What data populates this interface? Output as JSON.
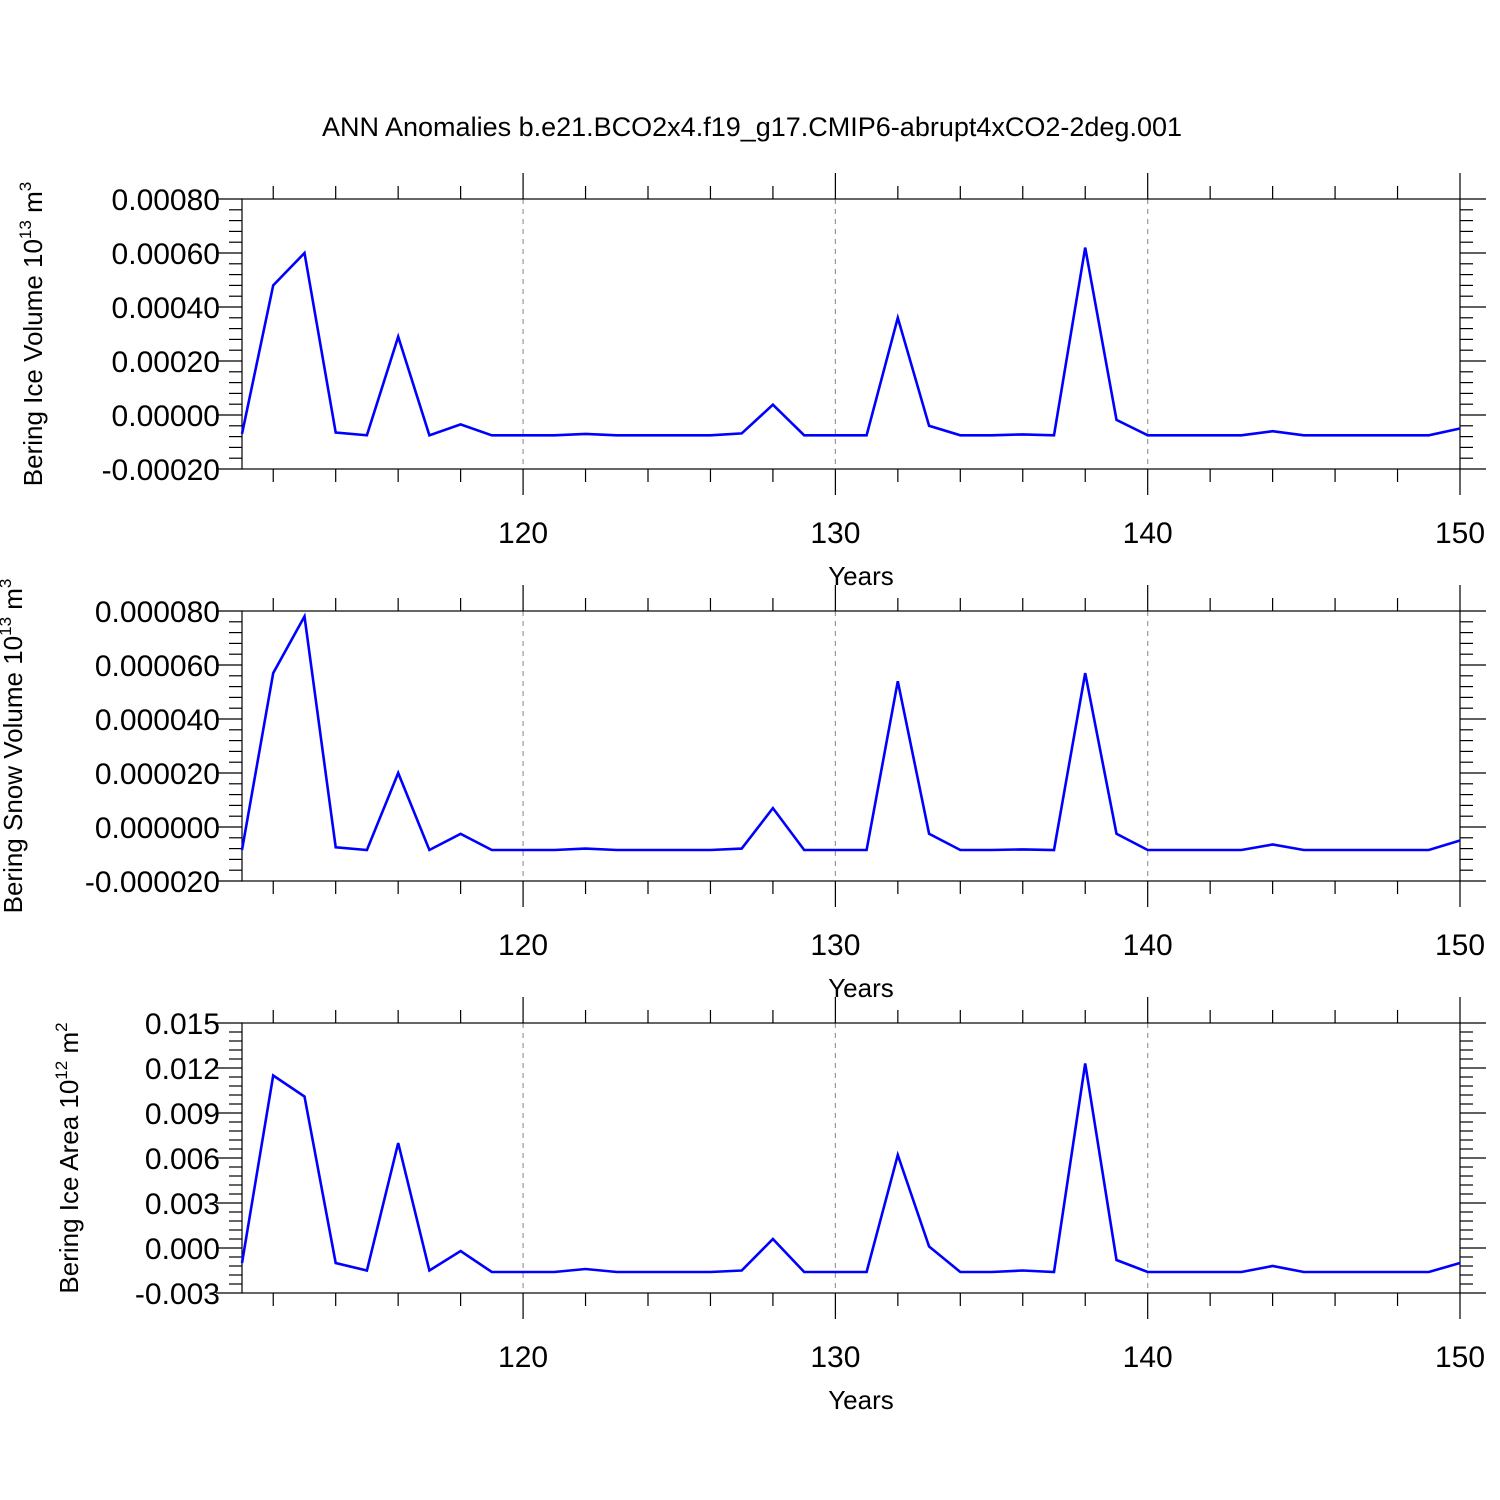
{
  "title": "ANN Anomalies b.e21.BCO2x4.f19_g17.CMIP6-abrupt4xCO2-2deg.001",
  "colors": {
    "series": "#0000ff",
    "axis": "#000000",
    "grid": "#999999"
  },
  "chart_data": [
    {
      "type": "line",
      "ylabel": {
        "text": "Bering Ice Volume 10",
        "exp": "13",
        "unit": " m",
        "unit_exp": "3"
      },
      "xlabel": "Years",
      "xlim": [
        111,
        150
      ],
      "ylim": [
        -0.0002,
        0.0008
      ],
      "xticks": [
        120,
        130,
        140,
        150
      ],
      "xtick_labels": [
        "120",
        "130",
        "140",
        "150"
      ],
      "yticks": [
        -0.0002,
        0,
        0.0002,
        0.0004,
        0.0006,
        0.0008
      ],
      "ytick_labels": [
        "-0.00020",
        "0.00000",
        "0.00020",
        "0.00040",
        "0.00060",
        "0.00080"
      ],
      "series_color": "#0000ff",
      "x": [
        111,
        112,
        113,
        114,
        115,
        116,
        117,
        118,
        119,
        120,
        121,
        122,
        123,
        124,
        125,
        126,
        127,
        128,
        129,
        130,
        131,
        132,
        133,
        134,
        135,
        136,
        137,
        138,
        139,
        140,
        141,
        142,
        143,
        144,
        145,
        146,
        147,
        148,
        149,
        150
      ],
      "values": [
        -7e-05,
        0.00048,
        0.0006,
        -6.5e-05,
        -7.5e-05,
        0.00029,
        -7.5e-05,
        -3.5e-05,
        -7.5e-05,
        -7.5e-05,
        -7.5e-05,
        -7e-05,
        -7.5e-05,
        -7.5e-05,
        -7.5e-05,
        -7.5e-05,
        -6.8e-05,
        3.8e-05,
        -7.5e-05,
        -7.5e-05,
        -7.5e-05,
        0.00036,
        -4e-05,
        -7.5e-05,
        -7.5e-05,
        -7.2e-05,
        -7.5e-05,
        0.00062,
        -1.8e-05,
        -7.5e-05,
        -7.5e-05,
        -7.5e-05,
        -7.5e-05,
        -6e-05,
        -7.5e-05,
        -7.5e-05,
        -7.5e-05,
        -7.5e-05,
        -7.5e-05,
        -5e-05
      ]
    },
    {
      "type": "line",
      "ylabel": {
        "text": "Bering Snow Volume 10",
        "exp": "13",
        "unit": " m",
        "unit_exp": "3"
      },
      "xlabel": "Years",
      "xlim": [
        111,
        150
      ],
      "ylim": [
        -2e-05,
        8e-05
      ],
      "xticks": [
        120,
        130,
        140,
        150
      ],
      "xtick_labels": [
        "120",
        "130",
        "140",
        "150"
      ],
      "yticks": [
        -2e-05,
        0,
        2e-05,
        4e-05,
        6e-05,
        8e-05
      ],
      "ytick_labels": [
        "-0.000020",
        "0.000000",
        "0.000020",
        "0.000040",
        "0.000060",
        "0.000080"
      ],
      "series_color": "#0000ff",
      "x": [
        111,
        112,
        113,
        114,
        115,
        116,
        117,
        118,
        119,
        120,
        121,
        122,
        123,
        124,
        125,
        126,
        127,
        128,
        129,
        130,
        131,
        132,
        133,
        134,
        135,
        136,
        137,
        138,
        139,
        140,
        141,
        142,
        143,
        144,
        145,
        146,
        147,
        148,
        149,
        150
      ],
      "values": [
        -8.5e-06,
        5.7e-05,
        7.8e-05,
        -7.5e-06,
        -8.5e-06,
        2e-05,
        -8.5e-06,
        -2.5e-06,
        -8.5e-06,
        -8.5e-06,
        -8.5e-06,
        -8e-06,
        -8.5e-06,
        -8.5e-06,
        -8.5e-06,
        -8.5e-06,
        -8e-06,
        7e-06,
        -8.5e-06,
        -8.5e-06,
        -8.5e-06,
        5.4e-05,
        -2.5e-06,
        -8.5e-06,
        -8.5e-06,
        -8.3e-06,
        -8.5e-06,
        5.7e-05,
        -2.5e-06,
        -8.5e-06,
        -8.5e-06,
        -8.5e-06,
        -8.5e-06,
        -6.5e-06,
        -8.5e-06,
        -8.5e-06,
        -8.5e-06,
        -8.5e-06,
        -8.5e-06,
        -5e-06
      ]
    },
    {
      "type": "line",
      "ylabel": {
        "text": "Bering Ice Area 10",
        "exp": "12",
        "unit": " m",
        "unit_exp": "2"
      },
      "xlabel": "Years",
      "xlim": [
        111,
        150
      ],
      "ylim": [
        -0.003,
        0.015
      ],
      "xticks": [
        120,
        130,
        140,
        150
      ],
      "xtick_labels": [
        "120",
        "130",
        "140",
        "150"
      ],
      "yticks": [
        -0.003,
        0,
        0.003,
        0.006,
        0.009,
        0.012,
        0.015
      ],
      "ytick_labels": [
        "-0.003",
        "0.000",
        "0.003",
        "0.006",
        "0.009",
        "0.012",
        "0.015"
      ],
      "series_color": "#0000ff",
      "x": [
        111,
        112,
        113,
        114,
        115,
        116,
        117,
        118,
        119,
        120,
        121,
        122,
        123,
        124,
        125,
        126,
        127,
        128,
        129,
        130,
        131,
        132,
        133,
        134,
        135,
        136,
        137,
        138,
        139,
        140,
        141,
        142,
        143,
        144,
        145,
        146,
        147,
        148,
        149,
        150
      ],
      "values": [
        -0.001,
        0.0115,
        0.0101,
        -0.001,
        -0.0015,
        0.007,
        -0.0015,
        -0.0002,
        -0.0016,
        -0.0016,
        -0.0016,
        -0.0014,
        -0.0016,
        -0.0016,
        -0.0016,
        -0.0016,
        -0.0015,
        0.0006,
        -0.0016,
        -0.0016,
        -0.0016,
        0.0062,
        0.0001,
        -0.0016,
        -0.0016,
        -0.0015,
        -0.0016,
        0.0123,
        -0.0008,
        -0.0016,
        -0.0016,
        -0.0016,
        -0.0016,
        -0.0012,
        -0.0016,
        -0.0016,
        -0.0016,
        -0.0016,
        -0.0016,
        -0.001
      ]
    }
  ]
}
